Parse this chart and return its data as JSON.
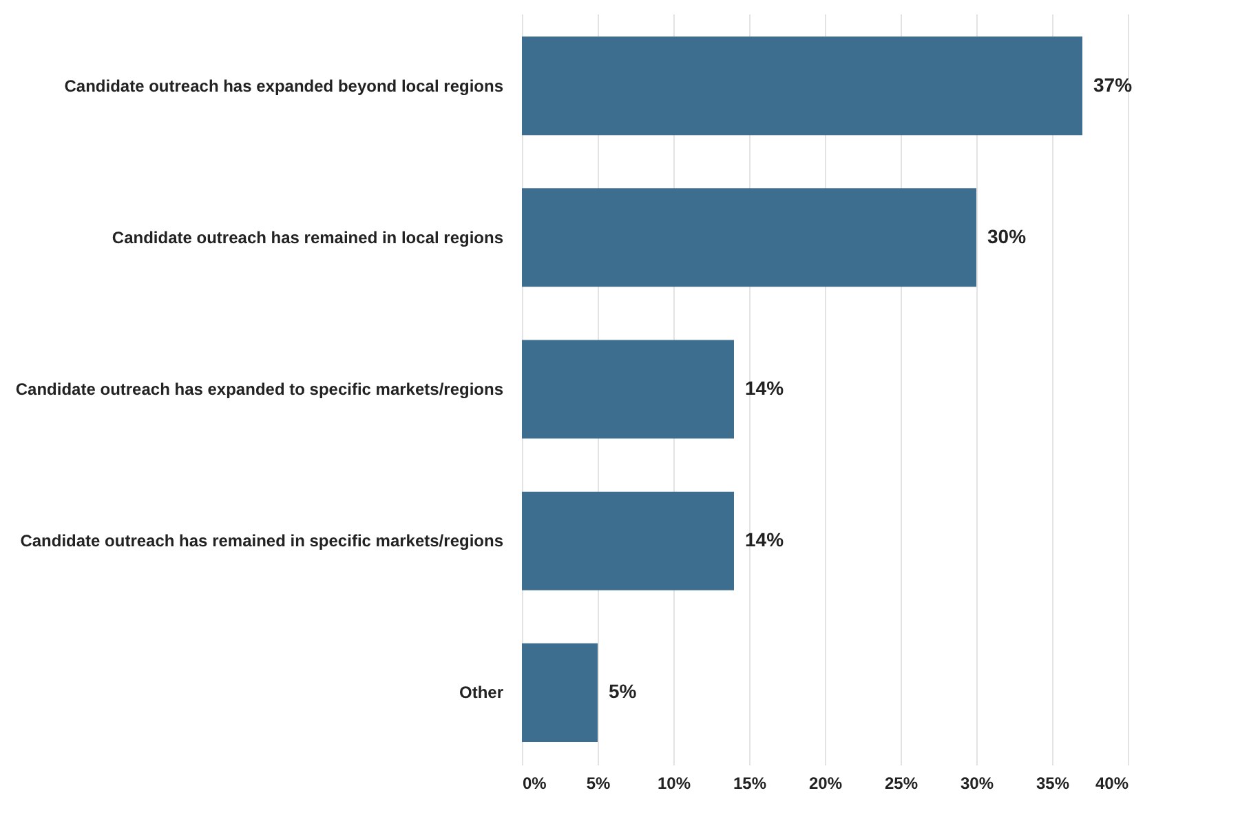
{
  "chart_data": {
    "type": "bar",
    "orientation": "horizontal",
    "categories": [
      "Candidate outreach has expanded beyond local regions",
      "Candidate outreach has remained in local regions",
      "Candidate outreach has expanded to specific markets/regions",
      "Candidate outreach has remained in specific markets/regions",
      "Other"
    ],
    "values": [
      37,
      30,
      14,
      14,
      5
    ],
    "value_labels": [
      "37%",
      "30%",
      "14%",
      "14%",
      "5%"
    ],
    "color": "#3d6e8f",
    "xlim": [
      0,
      40
    ],
    "xticks": [
      {
        "value": 0,
        "label": "0%"
      },
      {
        "value": 5,
        "label": "5%"
      },
      {
        "value": 10,
        "label": "10%"
      },
      {
        "value": 15,
        "label": "15%"
      },
      {
        "value": 20,
        "label": "20%"
      },
      {
        "value": 25,
        "label": "25%"
      },
      {
        "value": 30,
        "label": "30%"
      },
      {
        "value": 35,
        "label": "35%"
      },
      {
        "value": 40,
        "label": "40%"
      }
    ],
    "grid": "x"
  }
}
